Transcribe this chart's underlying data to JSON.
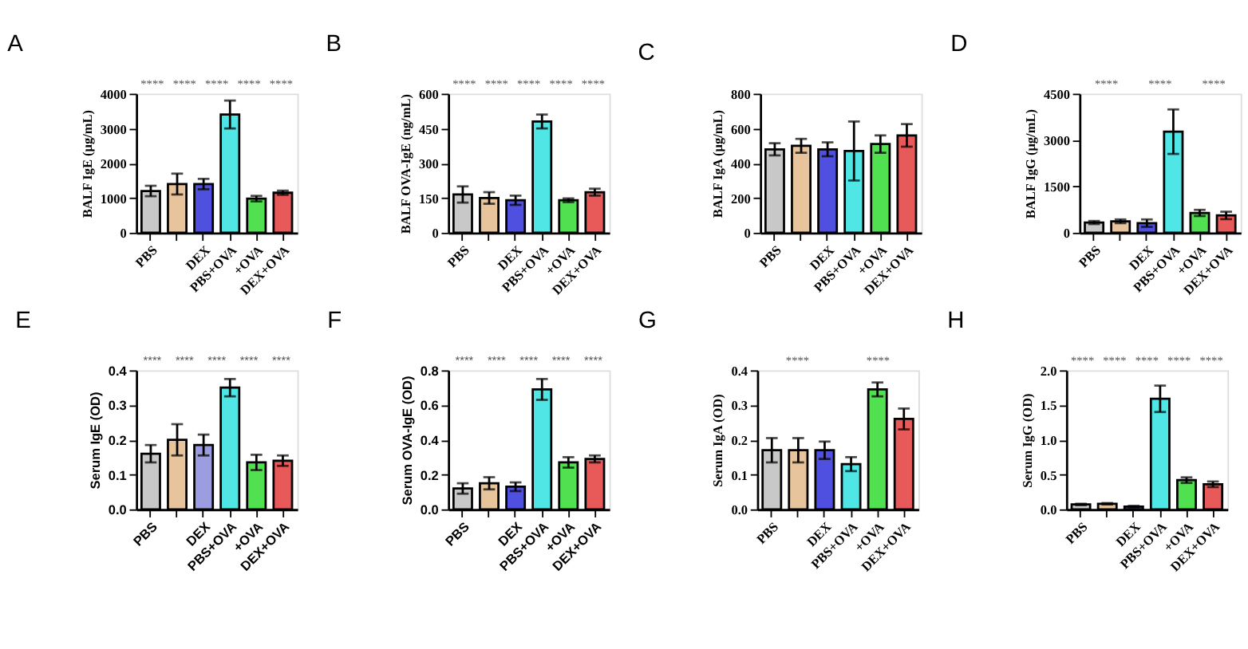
{
  "chart_data": [
    {
      "type": "bar",
      "title": "A",
      "ylabel": "BALF IgE (μg/mL)",
      "categories": [
        "PBS",
        null,
        "DEX",
        "PBS+OVA",
        "+OVA",
        "DEX+OVA"
      ],
      "values": [
        1200,
        1400,
        1400,
        3400,
        980,
        1150
      ],
      "errors": [
        150,
        300,
        150,
        400,
        80,
        60
      ],
      "colors": [
        "#c8c8c8",
        "#e8c49c",
        "#5050e0",
        "#50e6e6",
        "#50e050",
        "#e85a5a"
      ],
      "ylim": [
        0,
        4000
      ],
      "yticks": [
        0,
        1000,
        2000,
        3000,
        4000
      ],
      "grid": false,
      "annotations": [
        "****",
        "****",
        "****",
        "****",
        "****"
      ]
    },
    {
      "type": "bar",
      "title": "B",
      "ylabel": "BALF OVA-IgE (ng/mL)",
      "categories": [
        "PBS",
        null,
        "DEX",
        "PBS+OVA",
        "+OVA",
        "DEX+OVA"
      ],
      "values": [
        165,
        150,
        140,
        480,
        140,
        175
      ],
      "errors": [
        35,
        25,
        20,
        30,
        8,
        15
      ],
      "colors": [
        "#c8c8c8",
        "#e8c49c",
        "#5050e0",
        "#50e6e6",
        "#50e050",
        "#e85a5a"
      ],
      "ylim": [
        0,
        600
      ],
      "yticks": [
        0,
        150,
        300,
        450,
        600
      ],
      "grid": false,
      "annotations": [
        "****",
        "****",
        "****",
        "****",
        "****"
      ]
    },
    {
      "type": "bar",
      "title": "C",
      "ylabel": "BALF IgA (μg/mL)",
      "categories": [
        "PBS",
        null,
        "DEX",
        "PBS+OVA",
        "+OVA",
        "DEX+OVA"
      ],
      "values": [
        480,
        500,
        480,
        470,
        510,
        560
      ],
      "errors": [
        35,
        40,
        40,
        170,
        50,
        65
      ],
      "colors": [
        "#c8c8c8",
        "#e8c49c",
        "#5050e0",
        "#50e6e6",
        "#50e050",
        "#e85a5a"
      ],
      "ylim": [
        0,
        800
      ],
      "yticks": [
        0,
        200,
        400,
        600,
        800
      ],
      "grid": false
    },
    {
      "type": "bar",
      "title": "D",
      "ylabel": "BALF IgG (μg/mL)",
      "categories": [
        "PBS",
        null,
        "DEX",
        "PBS+OVA",
        "+OVA",
        "DEX+OVA"
      ],
      "values": [
        330,
        370,
        310,
        3270,
        640,
        560
      ],
      "errors": [
        50,
        60,
        120,
        720,
        100,
        120
      ],
      "colors": [
        "#c8c8c8",
        "#e8c49c",
        "#5050e0",
        "#50e6e6",
        "#50e050",
        "#e85a5a"
      ],
      "ylim": [
        0,
        4500
      ],
      "yticks": [
        0,
        1500,
        3000,
        4500
      ],
      "grid": false,
      "annotations": [
        "****",
        "****",
        "****"
      ]
    },
    {
      "type": "bar",
      "title": "E",
      "ylabel": "Serum IgE (OD)",
      "categories": [
        "PBS",
        null,
        "DEX",
        "PBS+OVA",
        "+OVA",
        "DEX+OVA"
      ],
      "values": [
        0.16,
        0.2,
        0.185,
        0.35,
        0.135,
        0.14
      ],
      "errors": [
        0.025,
        0.045,
        0.03,
        0.025,
        0.022,
        0.015
      ],
      "colors": [
        "#c8c8c8",
        "#e8c49c",
        "#9c9ce0",
        "#50e6e6",
        "#50e050",
        "#e85a5a"
      ],
      "ylim": [
        0,
        0.4
      ],
      "yticks": [
        {
          "value": 0,
          "label": "0.0"
        },
        0.1,
        0.2,
        0.3,
        0.4
      ],
      "grid": false,
      "annotations": [
        "****",
        "****",
        "****",
        "****",
        "****"
      ]
    },
    {
      "type": "bar",
      "title": "F",
      "ylabel": "Serum OVA-IgE (OD)",
      "categories": [
        "PBS",
        null,
        "DEX",
        "PBS+OVA",
        "+OVA",
        "DEX+OVA"
      ],
      "values": [
        0.12,
        0.15,
        0.13,
        0.69,
        0.27,
        0.29
      ],
      "errors": [
        0.03,
        0.035,
        0.025,
        0.06,
        0.03,
        0.02
      ],
      "colors": [
        "#c8c8c8",
        "#e8c49c",
        "#5050e0",
        "#50e6e6",
        "#50e050",
        "#e85a5a"
      ],
      "ylim": [
        0,
        0.8
      ],
      "yticks": [
        {
          "value": 0,
          "label": "0.0"
        },
        0.2,
        0.4,
        0.6,
        0.8
      ],
      "grid": false,
      "annotations": [
        "****",
        "****",
        "****",
        "****",
        "****"
      ]
    },
    {
      "type": "bar",
      "title": "G",
      "ylabel": "Serum IgA (OD)",
      "categories": [
        "PBS",
        null,
        "DEX",
        "PBS+OVA",
        "+OVA",
        "DEX+OVA"
      ],
      "values": [
        0.17,
        0.17,
        0.17,
        0.13,
        0.345,
        0.26
      ],
      "errors": [
        0.035,
        0.035,
        0.025,
        0.02,
        0.02,
        0.03
      ],
      "colors": [
        "#c8c8c8",
        "#e8c49c",
        "#5050e0",
        "#50e6e6",
        "#50e050",
        "#e85a5a"
      ],
      "ylim": [
        0,
        0.4
      ],
      "yticks": [
        {
          "value": 0,
          "label": "0.0"
        },
        0.1,
        0.2,
        0.3,
        0.4
      ],
      "grid": false,
      "annotations": [
        "****",
        "****"
      ]
    },
    {
      "type": "bar",
      "title": "H",
      "ylabel": "Serum IgG (OD)",
      "categories": [
        "PBS",
        null,
        "DEX",
        "PBS+OVA",
        "+OVA",
        "DEX+OVA"
      ],
      "values": [
        0.07,
        0.08,
        0.04,
        1.59,
        0.42,
        0.36
      ],
      "errors": [
        0.01,
        0.01,
        0.01,
        0.19,
        0.04,
        0.04
      ],
      "colors": [
        "#c8c8c8",
        "#e8c49c",
        "#5050e0",
        "#50e6e6",
        "#50e050",
        "#e85a5a"
      ],
      "ylim": [
        0,
        2.0
      ],
      "yticks": [
        {
          "value": 0,
          "label": "0.0"
        },
        0.5,
        {
          "value": 1,
          "label": "1.0"
        },
        1.5,
        {
          "value": 2,
          "label": "2.0"
        }
      ],
      "grid": false,
      "annotations": [
        "****",
        "****",
        "****",
        "****",
        "****"
      ]
    }
  ]
}
